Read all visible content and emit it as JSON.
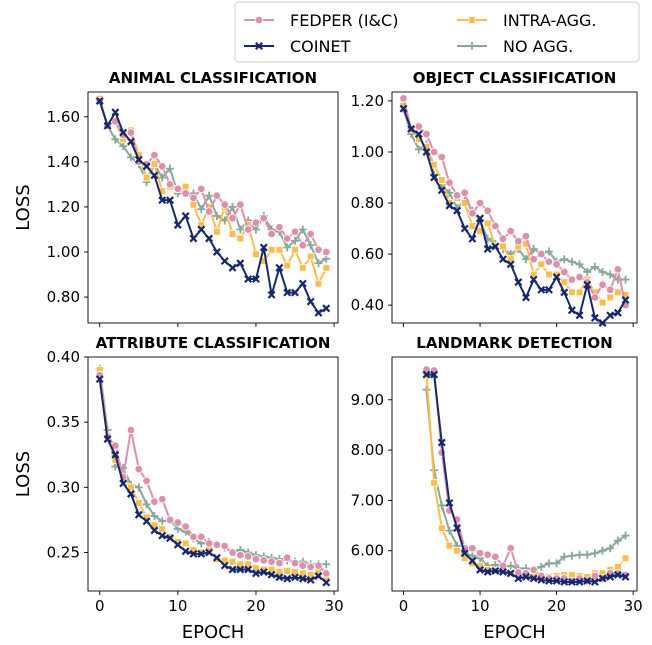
{
  "legend": {
    "placement": "top-right, above plots",
    "entries": [
      {
        "label": "FEDPER (I&C)",
        "color": "#dd8fae",
        "marker": "circle"
      },
      {
        "label": "COINET",
        "color": "#16286b",
        "marker": "x"
      },
      {
        "label": "INTRA-AGG.",
        "color": "#fbbc50",
        "marker": "square"
      },
      {
        "label": "NO AGG.",
        "color": "#8aa897",
        "marker": "plus"
      }
    ]
  },
  "chart_data": [
    {
      "type": "line",
      "title": "ANIMAL CLASSIFICATION",
      "xlabel": "",
      "ylabel": "LOSS",
      "xlim": [
        -1.5,
        30.5
      ],
      "ylim": [
        0.685,
        1.71
      ],
      "xticks": [
        0,
        10,
        20,
        30
      ],
      "xtick_labels": [
        "",
        "",
        "",
        ""
      ],
      "yticks": [
        0.8,
        1.0,
        1.2,
        1.4,
        1.6
      ],
      "ytick_labels": [
        "0.80",
        "1.00",
        "1.20",
        "1.40",
        "1.60"
      ],
      "x": [
        0,
        1,
        2,
        3,
        4,
        5,
        6,
        7,
        8,
        9,
        10,
        11,
        12,
        13,
        14,
        15,
        16,
        17,
        18,
        19,
        20,
        21,
        22,
        23,
        24,
        25,
        26,
        27,
        28,
        29
      ],
      "series": [
        {
          "name": "FEDPER (I&C)",
          "values": [
            1.67,
            1.56,
            1.58,
            1.52,
            1.53,
            1.4,
            1.39,
            1.43,
            1.38,
            1.3,
            1.28,
            1.26,
            1.24,
            1.28,
            1.18,
            1.25,
            1.21,
            1.15,
            1.21,
            1.1,
            1.13,
            1.15,
            1.08,
            1.11,
            1.06,
            1.09,
            1.03,
            1.08,
            1.01,
            1.0
          ]
        },
        {
          "name": "COINET",
          "values": [
            1.67,
            1.56,
            1.62,
            1.53,
            1.49,
            1.41,
            1.38,
            1.34,
            1.23,
            1.23,
            1.12,
            1.16,
            1.06,
            1.1,
            1.06,
            1.0,
            0.96,
            0.93,
            0.95,
            0.88,
            0.88,
            1.02,
            0.81,
            0.93,
            0.82,
            0.82,
            0.86,
            0.78,
            0.73,
            0.75
          ]
        },
        {
          "name": "INTRA-AGG.",
          "values": [
            1.68,
            1.56,
            1.58,
            1.5,
            1.54,
            1.43,
            1.33,
            1.39,
            1.27,
            1.29,
            1.28,
            1.29,
            1.21,
            1.12,
            1.2,
            1.09,
            1.2,
            1.08,
            1.06,
            1.12,
            0.99,
            0.96,
            1.01,
            1.01,
            0.94,
            1.01,
            0.93,
            0.98,
            0.86,
            0.93
          ]
        },
        {
          "name": "NO AGG.",
          "values": [
            1.68,
            1.56,
            1.5,
            1.47,
            1.42,
            1.39,
            1.31,
            1.39,
            1.33,
            1.37,
            1.26,
            1.26,
            1.26,
            1.19,
            1.25,
            1.16,
            1.14,
            1.2,
            1.1,
            1.14,
            1.1,
            1.16,
            1.1,
            1.09,
            1.02,
            1.05,
            1.1,
            1.03,
            0.95,
            0.97
          ]
        }
      ]
    },
    {
      "type": "line",
      "title": "OBJECT CLASSIFICATION",
      "xlabel": "",
      "ylabel": "",
      "xlim": [
        -1.5,
        30.5
      ],
      "ylim": [
        0.33,
        1.235
      ],
      "xticks": [
        0,
        10,
        20,
        30
      ],
      "xtick_labels": [
        "",
        "",
        "",
        ""
      ],
      "yticks": [
        0.4,
        0.6,
        0.8,
        1.0,
        1.2
      ],
      "ytick_labels": [
        "0.40",
        "0.60",
        "0.80",
        "1.00",
        "1.20"
      ],
      "x": [
        0,
        1,
        2,
        3,
        4,
        5,
        6,
        7,
        8,
        9,
        10,
        11,
        12,
        13,
        14,
        15,
        16,
        17,
        18,
        19,
        20,
        21,
        22,
        23,
        24,
        25,
        26,
        27,
        28,
        29
      ],
      "series": [
        {
          "name": "FEDPER (I&C)",
          "values": [
            1.21,
            1.09,
            1.1,
            1.07,
            1.0,
            0.98,
            0.88,
            0.83,
            0.84,
            0.76,
            0.8,
            0.77,
            0.71,
            0.66,
            0.69,
            0.65,
            0.67,
            0.58,
            0.6,
            0.57,
            0.56,
            0.53,
            0.5,
            0.51,
            0.49,
            0.43,
            0.48,
            0.46,
            0.54,
            0.4
          ]
        },
        {
          "name": "COINET",
          "values": [
            1.17,
            1.09,
            1.07,
            1.0,
            0.9,
            0.85,
            0.79,
            0.77,
            0.7,
            0.66,
            0.74,
            0.62,
            0.63,
            0.58,
            0.56,
            0.49,
            0.43,
            0.5,
            0.46,
            0.46,
            0.51,
            0.45,
            0.38,
            0.36,
            0.48,
            0.35,
            0.33,
            0.36,
            0.37,
            0.42
          ]
        },
        {
          "name": "INTRA-AGG.",
          "values": [
            1.18,
            1.09,
            1.05,
            1.02,
            0.95,
            0.89,
            0.8,
            0.82,
            0.8,
            0.71,
            0.69,
            0.72,
            0.63,
            0.63,
            0.58,
            0.63,
            0.64,
            0.52,
            0.56,
            0.52,
            0.52,
            0.49,
            0.45,
            0.45,
            0.5,
            0.45,
            0.41,
            0.43,
            0.45,
            0.44
          ]
        },
        {
          "name": "NO AGG.",
          "values": [
            1.17,
            1.07,
            1.01,
            1.03,
            0.91,
            0.87,
            0.84,
            0.78,
            0.81,
            0.77,
            0.73,
            0.66,
            0.64,
            0.62,
            0.6,
            0.62,
            0.58,
            0.62,
            0.6,
            0.61,
            0.57,
            0.58,
            0.57,
            0.56,
            0.53,
            0.55,
            0.53,
            0.52,
            0.5,
            0.5
          ]
        }
      ]
    },
    {
      "type": "line",
      "title": "ATTRIBUTE CLASSIFICATION",
      "xlabel": "EPOCH",
      "ylabel": "LOSS",
      "xlim": [
        -1.5,
        30.5
      ],
      "ylim": [
        0.2205,
        0.4
      ],
      "xticks": [
        0,
        10,
        20,
        30
      ],
      "xtick_labels": [
        "0",
        "10",
        "20",
        "30"
      ],
      "yticks": [
        0.25,
        0.3,
        0.35,
        0.4
      ],
      "ytick_labels": [
        "0.25",
        "0.30",
        "0.35",
        "0.40"
      ],
      "x": [
        0,
        1,
        2,
        3,
        4,
        5,
        6,
        7,
        8,
        9,
        10,
        11,
        12,
        13,
        14,
        15,
        16,
        17,
        18,
        19,
        20,
        21,
        22,
        23,
        24,
        25,
        26,
        27,
        28,
        29
      ],
      "series": [
        {
          "name": "FEDPER (I&C)",
          "values": [
            0.386,
            0.339,
            0.332,
            0.308,
            0.344,
            0.314,
            0.305,
            0.289,
            0.291,
            0.275,
            0.273,
            0.27,
            0.262,
            0.262,
            0.257,
            0.256,
            0.255,
            0.25,
            0.248,
            0.247,
            0.245,
            0.244,
            0.243,
            0.242,
            0.246,
            0.242,
            0.24,
            0.239,
            0.24,
            0.234
          ]
        },
        {
          "name": "COINET",
          "values": [
            0.383,
            0.337,
            0.325,
            0.303,
            0.295,
            0.279,
            0.274,
            0.267,
            0.263,
            0.261,
            0.256,
            0.251,
            0.249,
            0.249,
            0.25,
            0.246,
            0.24,
            0.237,
            0.237,
            0.237,
            0.234,
            0.235,
            0.233,
            0.231,
            0.23,
            0.231,
            0.23,
            0.229,
            0.232,
            0.227
          ]
        },
        {
          "name": "INTRA-AGG.",
          "values": [
            0.39,
            0.34,
            0.321,
            0.31,
            0.3,
            0.288,
            0.277,
            0.271,
            0.268,
            0.262,
            0.258,
            0.257,
            0.252,
            0.25,
            0.252,
            0.245,
            0.244,
            0.243,
            0.241,
            0.241,
            0.238,
            0.237,
            0.237,
            0.235,
            0.236,
            0.235,
            0.234,
            0.233,
            0.235,
            0.231
          ]
        },
        {
          "name": "NO AGG.",
          "values": [
            0.391,
            0.344,
            0.316,
            0.315,
            0.302,
            0.3,
            0.287,
            0.278,
            0.274,
            0.275,
            0.268,
            0.266,
            0.261,
            0.257,
            0.258,
            0.256,
            0.254,
            0.25,
            0.252,
            0.25,
            0.248,
            0.247,
            0.246,
            0.245,
            0.244,
            0.243,
            0.243,
            0.241,
            0.241,
            0.241
          ]
        }
      ]
    },
    {
      "type": "line",
      "title": "LANDMARK DETECTION",
      "xlabel": "EPOCH",
      "ylabel": "",
      "xlim": [
        -1.5,
        30.5
      ],
      "ylim": [
        5.2,
        9.85
      ],
      "xticks": [
        0,
        10,
        20,
        30
      ],
      "xtick_labels": [
        "0",
        "10",
        "20",
        "30"
      ],
      "yticks": [
        6.0,
        7.0,
        8.0,
        9.0
      ],
      "ytick_labels": [
        "6.00",
        "7.00",
        "8.00",
        "9.00"
      ],
      "x": [
        3,
        4,
        5,
        6,
        7,
        8,
        9,
        10,
        11,
        12,
        13,
        14,
        15,
        16,
        17,
        18,
        19,
        20,
        21,
        22,
        23,
        24,
        25,
        26,
        27,
        28,
        29
      ],
      "series": [
        {
          "name": "FEDPER (I&C)",
          "values": [
            9.6,
            9.58,
            7.95,
            6.8,
            6.62,
            6.05,
            6.05,
            5.95,
            5.92,
            5.88,
            5.7,
            6.05,
            5.57,
            5.55,
            5.62,
            5.5,
            5.45,
            5.45,
            5.45,
            5.4,
            5.45,
            5.4,
            5.5,
            5.45,
            5.55,
            5.55,
            5.52
          ]
        },
        {
          "name": "COINET",
          "values": [
            9.5,
            9.5,
            8.15,
            6.95,
            6.45,
            5.95,
            5.8,
            5.62,
            5.58,
            5.6,
            5.58,
            5.55,
            5.45,
            5.48,
            5.45,
            5.42,
            5.4,
            5.4,
            5.38,
            5.38,
            5.38,
            5.4,
            5.38,
            5.45,
            5.48,
            5.52,
            5.48
          ]
        },
        {
          "name": "INTRA-AGG.",
          "values": [
            9.55,
            7.35,
            6.45,
            6.1,
            6.0,
            5.85,
            5.75,
            5.7,
            5.62,
            5.6,
            5.65,
            5.55,
            5.52,
            5.5,
            5.5,
            5.5,
            5.48,
            5.5,
            5.52,
            5.52,
            5.5,
            5.48,
            5.55,
            5.55,
            5.62,
            5.68,
            5.85
          ]
        },
        {
          "name": "NO AGG.",
          "values": [
            9.2,
            7.6,
            6.9,
            6.4,
            6.1,
            5.95,
            5.9,
            5.85,
            5.7,
            5.72,
            5.68,
            5.7,
            5.65,
            5.65,
            5.62,
            5.68,
            5.75,
            5.75,
            5.88,
            5.9,
            5.92,
            5.92,
            5.95,
            6.0,
            6.05,
            6.2,
            6.3
          ]
        }
      ]
    }
  ]
}
